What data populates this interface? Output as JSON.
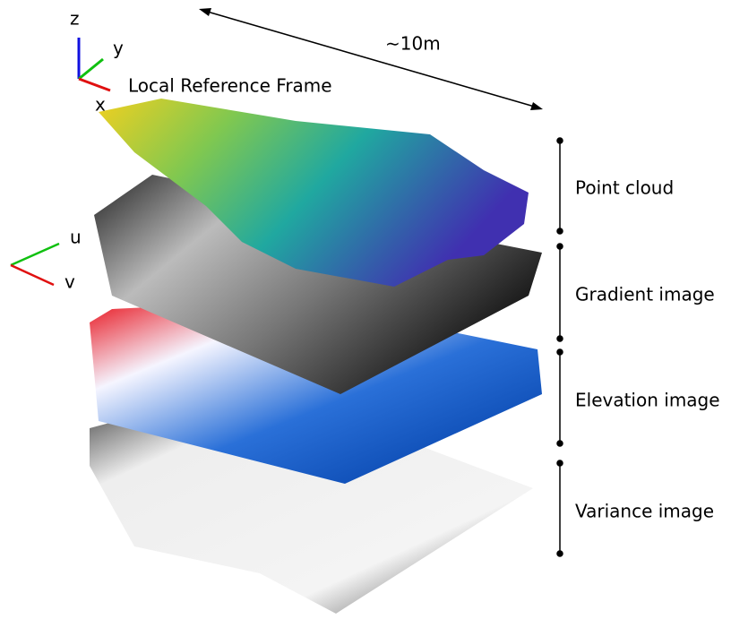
{
  "frame_3d": {
    "z": "z",
    "y": "y",
    "x": "x",
    "caption": "Local Reference Frame"
  },
  "scale": "∼10m",
  "frame_2d": {
    "u": "u",
    "v": "v"
  },
  "layers": [
    {
      "label": "Point cloud"
    },
    {
      "label": "Gradient image"
    },
    {
      "label": "Elevation image"
    },
    {
      "label": "Variance image"
    }
  ]
}
